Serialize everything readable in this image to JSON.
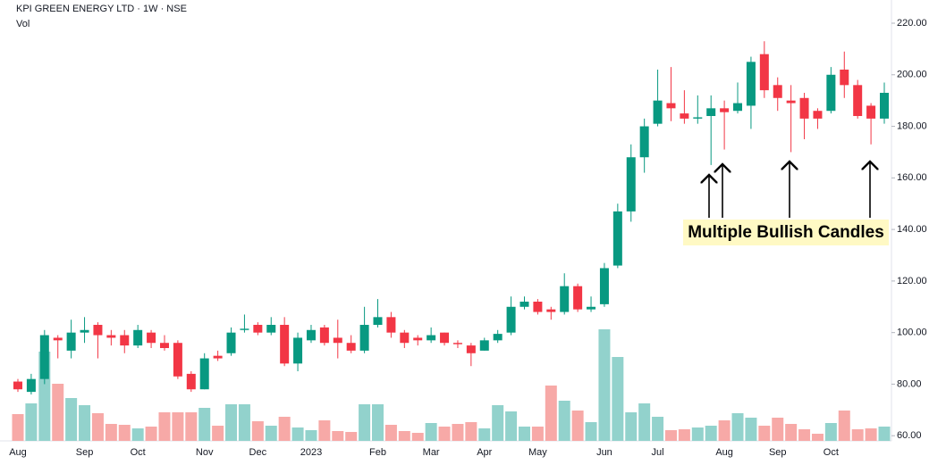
{
  "chart_data": {
    "type": "candlestick",
    "title": "KPI GREEN ENERGY LTD · 1W · NSE",
    "volume_label": "Vol",
    "annotation": "Multiple Bullish Candles",
    "up_color": "#089981",
    "down_color": "#f23645",
    "volume_up_color": "#92d2cc",
    "volume_down_color": "#f7a9a7",
    "categories": [
      "Aug",
      null,
      null,
      null,
      null,
      "Sep",
      null,
      null,
      null,
      "Oct",
      null,
      null,
      null,
      null,
      "Nov",
      null,
      null,
      null,
      "Dec",
      null,
      null,
      null,
      "2023",
      null,
      null,
      null,
      null,
      "Feb",
      null,
      null,
      null,
      "Mar",
      null,
      null,
      null,
      "Apr",
      null,
      null,
      null,
      "May",
      null,
      null,
      null,
      null,
      "Jun",
      null,
      null,
      null,
      "Jul",
      null,
      null,
      null,
      null,
      "Aug",
      null,
      null,
      null,
      "Sep",
      null,
      null,
      null,
      "Oct",
      null,
      null,
      null,
      null
    ],
    "open": [
      81,
      77,
      82,
      98,
      93,
      100,
      103,
      99,
      99,
      95,
      100,
      96,
      96,
      84,
      78,
      91,
      92,
      101,
      103,
      100,
      103,
      88,
      97,
      102,
      98,
      96,
      93,
      103,
      106,
      100,
      98,
      97,
      100,
      96,
      95,
      93,
      97,
      100,
      110,
      112,
      109,
      108,
      118,
      109,
      111,
      126,
      147,
      168,
      181,
      189,
      185,
      183,
      184,
      187,
      186,
      188,
      208,
      196,
      190,
      191,
      186,
      186,
      202,
      196,
      188,
      183
    ],
    "high": [
      82,
      84,
      101,
      99,
      105,
      106,
      104,
      101,
      101,
      103,
      101,
      99,
      97,
      85,
      92,
      93,
      102,
      107,
      104,
      106,
      106,
      100,
      103,
      103,
      105,
      99,
      110,
      113,
      108,
      101,
      99,
      102,
      100,
      97,
      96,
      98,
      101,
      114,
      114,
      113,
      110,
      123,
      119,
      114,
      127,
      150,
      173,
      183,
      202,
      203,
      194,
      192,
      192,
      190,
      197,
      207,
      213,
      199,
      196,
      193,
      187,
      203,
      209,
      198,
      189,
      197
    ],
    "low": [
      77,
      76,
      80,
      90,
      90,
      96,
      90,
      95,
      92,
      94,
      94,
      93,
      82,
      77,
      78,
      89,
      91,
      100,
      99,
      99,
      87,
      85,
      96,
      95,
      90,
      92,
      92,
      102,
      98,
      94,
      95,
      96,
      95,
      94,
      87,
      93,
      96,
      99,
      109,
      107,
      105,
      107,
      108,
      108,
      110,
      125,
      143,
      162,
      180,
      182,
      181,
      181,
      165,
      171,
      185,
      179,
      191,
      186,
      170,
      175,
      179,
      185,
      191,
      183,
      173,
      181
    ],
    "close": [
      78,
      82,
      99,
      97,
      100,
      101,
      99,
      98,
      95,
      101,
      96,
      94,
      83,
      78,
      90,
      90,
      100,
      101.5,
      100,
      103,
      88,
      98,
      101,
      96,
      96,
      93,
      103,
      106,
      100,
      96,
      97,
      99,
      96,
      95.5,
      92,
      97,
      99.5,
      110,
      112,
      108,
      108,
      118,
      109,
      110,
      125,
      147,
      168,
      180,
      190,
      187,
      183,
      183.5,
      187,
      185.5,
      189,
      205,
      194,
      191,
      189,
      183,
      183,
      200,
      196,
      184,
      183,
      193
    ],
    "volume": [
      30,
      42,
      100,
      64,
      48,
      40,
      31,
      19,
      18,
      14,
      16,
      32,
      32,
      32,
      37,
      17,
      41,
      41,
      22,
      17,
      27,
      15,
      12,
      23,
      11,
      10,
      41,
      41,
      18,
      11,
      9,
      20,
      16,
      19,
      21,
      14,
      40,
      33,
      16,
      16,
      62,
      45,
      34,
      21,
      125,
      94,
      32,
      42,
      27,
      12,
      13,
      15,
      17,
      23,
      31,
      26,
      17,
      26,
      19,
      13,
      8,
      20,
      34,
      13,
      14,
      16
    ],
    "ylim": [
      58,
      229
    ],
    "yticks": [
      {
        "value": 60,
        "label": "60.00"
      },
      {
        "value": 80,
        "label": "80.00"
      },
      {
        "value": 100,
        "label": "100.00"
      },
      {
        "value": 120,
        "label": "120.00"
      },
      {
        "value": 140,
        "label": "140.00"
      },
      {
        "value": 160,
        "label": "160.00"
      },
      {
        "value": 180,
        "label": "180.00"
      },
      {
        "value": 200,
        "label": "200.00"
      },
      {
        "value": 220,
        "label": "220.00"
      }
    ]
  }
}
